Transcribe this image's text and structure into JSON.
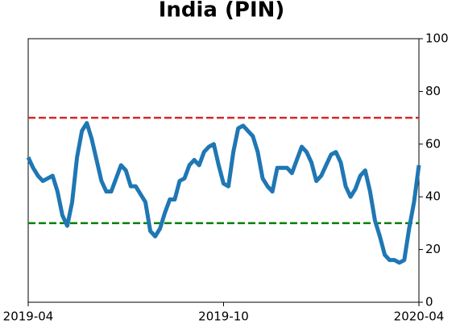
{
  "chart_data": {
    "type": "line",
    "title": "India (PIN)",
    "values": [
      55,
      51,
      48,
      46,
      47,
      48,
      42,
      33,
      29,
      38,
      55,
      65,
      68,
      62,
      54,
      46,
      42,
      42,
      47,
      52,
      50,
      44,
      44,
      41,
      38,
      27,
      25,
      28,
      34,
      39,
      39,
      46,
      47,
      52,
      54,
      52,
      57,
      59,
      60,
      52,
      45,
      44,
      57,
      66,
      67,
      65,
      63,
      57,
      47,
      44,
      42,
      51,
      51,
      51,
      49,
      54,
      59,
      57,
      53,
      46,
      48,
      52,
      56,
      57,
      53,
      44,
      40,
      43,
      48,
      50,
      42,
      31,
      25,
      18,
      16,
      16,
      15,
      16,
      28,
      38,
      52
    ],
    "color": "#1f77b4",
    "xlim": [
      0,
      80
    ],
    "xticks": [
      {
        "value": 0,
        "label": "2019-04"
      },
      {
        "value": 40,
        "label": "2019-10"
      },
      {
        "value": 80,
        "label": "2020-04"
      }
    ],
    "ylim": [
      0,
      100
    ],
    "yticks": [
      0,
      20,
      40,
      60,
      80,
      100
    ],
    "hlines": [
      {
        "value": 70,
        "color": "#d62728"
      },
      {
        "value": 30,
        "color": "#008000"
      }
    ]
  }
}
